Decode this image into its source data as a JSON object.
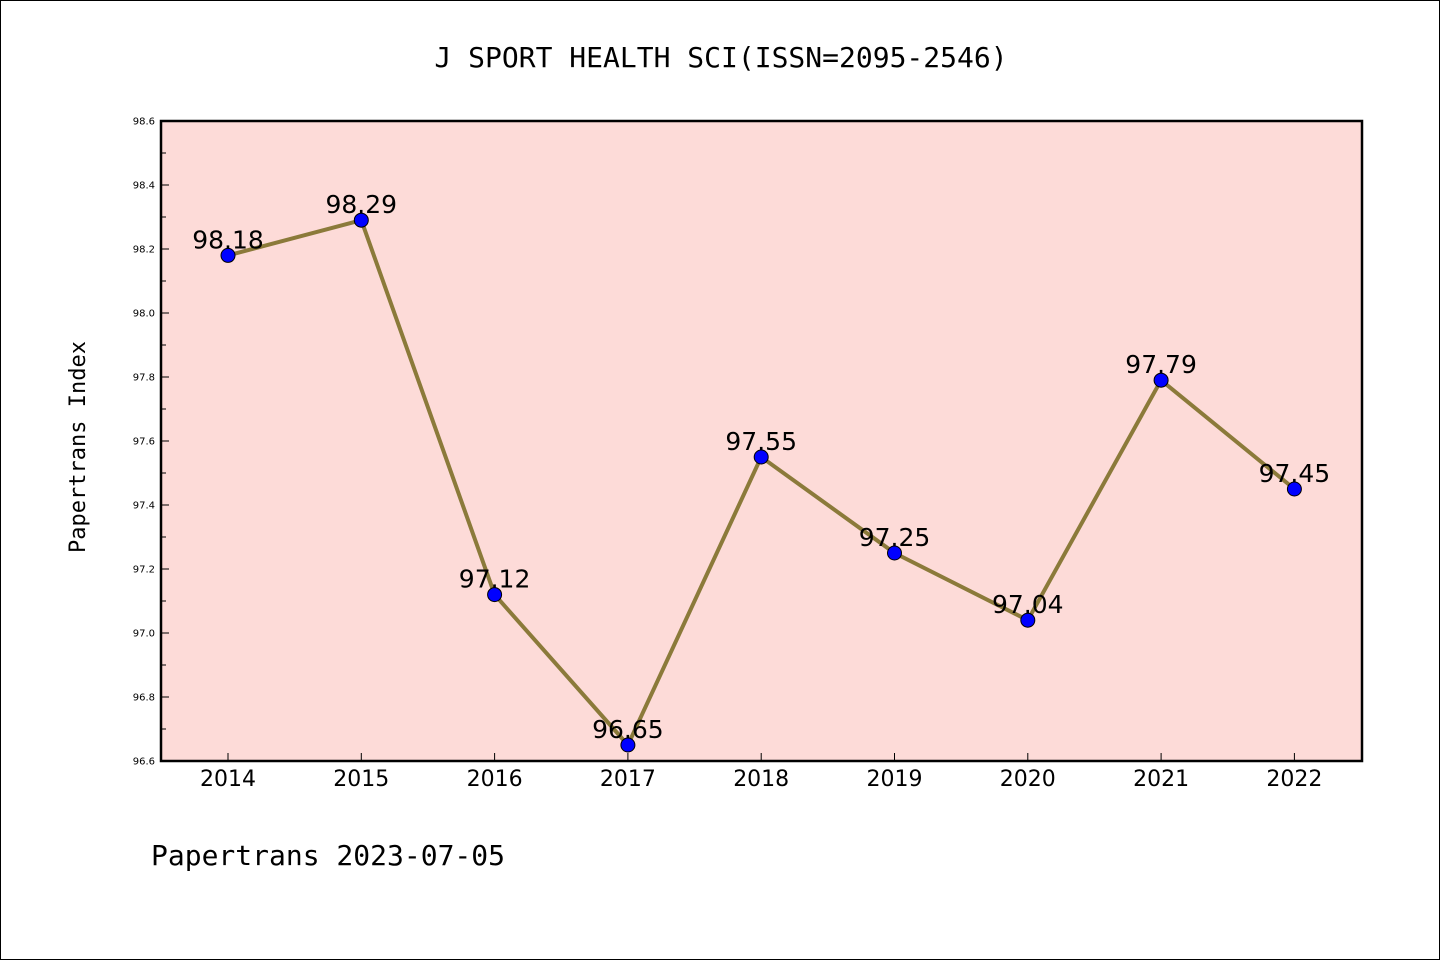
{
  "chart_data": {
    "type": "line",
    "title": "J SPORT HEALTH SCI(ISSN=2095-2546)",
    "ylabel": "Papertrans Index",
    "xlabel": "",
    "categories": [
      "2014",
      "2015",
      "2016",
      "2017",
      "2018",
      "2019",
      "2020",
      "2021",
      "2022"
    ],
    "values": [
      98.18,
      98.29,
      97.12,
      96.65,
      97.55,
      97.25,
      97.04,
      97.79,
      97.45
    ],
    "value_labels": [
      "98.18",
      "98.29",
      "97.12",
      "96.65",
      "97.55",
      "97.25",
      "97.04",
      "97.79",
      "97.45"
    ],
    "ylim": [
      96.6,
      98.6
    ],
    "yticks": [
      "96.6",
      "96.8",
      "97.0",
      "97.2",
      "97.4",
      "97.6",
      "97.8",
      "98.0",
      "98.2",
      "98.4",
      "98.6"
    ],
    "grid": false,
    "legend": "none",
    "colors": {
      "plot_background": "#fddbd8",
      "line": "#8b7a3a",
      "marker": "#0000ff"
    }
  },
  "footer": "Papertrans 2023-07-05"
}
